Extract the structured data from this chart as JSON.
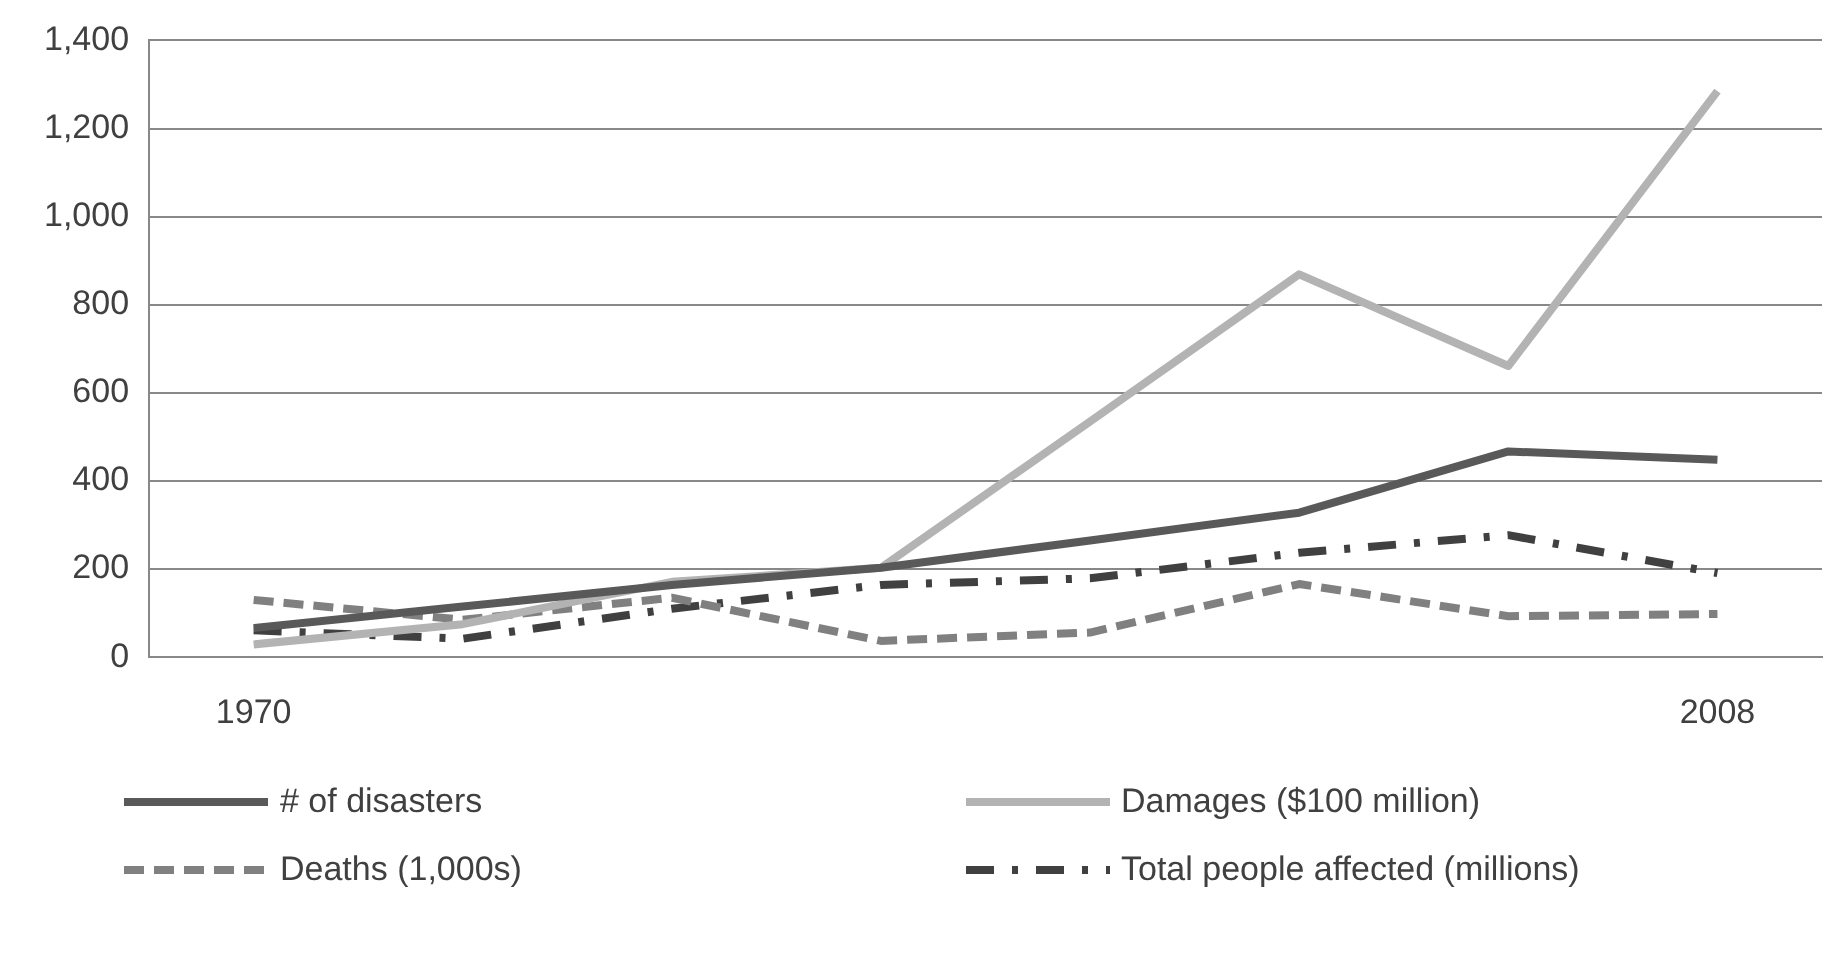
{
  "chart_data": {
    "type": "line",
    "categories": [
      "1970",
      null,
      null,
      null,
      null,
      null,
      null,
      "2008"
    ],
    "series": [
      {
        "name": "# of disasters",
        "color": "#595959",
        "line_style": "solid",
        "values": [
          66,
          115,
          164,
          203,
          265,
          328,
          467,
          448
        ]
      },
      {
        "name": "Damages ($100 million)",
        "color": "#b3b3b3",
        "line_style": "solid",
        "values": [
          29,
          75,
          171,
          203,
          535,
          869,
          661,
          1285
        ]
      },
      {
        "name": "Deaths (1,000s)",
        "color": "#808080",
        "line_style": "dashed",
        "values": [
          130,
          85,
          135,
          37,
          56,
          166,
          93,
          98
        ]
      },
      {
        "name": "Total people affected (millions)",
        "color": "#404040",
        "line_style": "dashdot",
        "values": [
          61,
          42,
          110,
          164,
          179,
          237,
          277,
          191
        ]
      }
    ],
    "ylim": [
      0,
      1400
    ],
    "yticks": [
      0,
      200,
      400,
      600,
      800,
      {
        "value": 1000,
        "label": "1,000"
      },
      {
        "value": 1200,
        "label": "1,200"
      },
      {
        "value": 1400,
        "label": "1,400"
      }
    ],
    "grid": "y",
    "legend": "bottom",
    "marker": "none"
  }
}
